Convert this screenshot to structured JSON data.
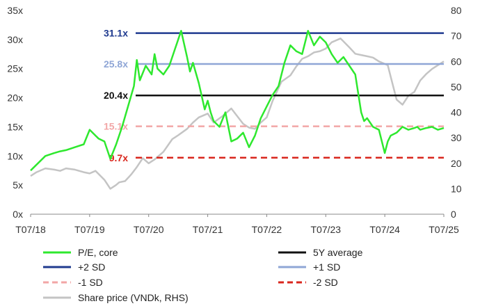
{
  "chart_data": {
    "type": "line",
    "title": "",
    "xlabel": "",
    "ylabel": "",
    "x_tick_labels": [
      "T07/18",
      "T07/19",
      "T07/20",
      "T07/21",
      "T07/22",
      "T07/23",
      "T07/24",
      "T07/25"
    ],
    "y_left": {
      "min": 0,
      "max": 35,
      "tick_labels": [
        "0x",
        "5x",
        "10x",
        "15x",
        "20x",
        "25x",
        "30x",
        "35x"
      ]
    },
    "y_right": {
      "min": 0,
      "max": 80,
      "tick_labels": [
        "0",
        "10",
        "20",
        "30",
        "40",
        "50",
        "60",
        "70",
        "80"
      ]
    },
    "grid": false,
    "legend_position": "bottom",
    "reference_lines": [
      {
        "name": "+2 SD",
        "value": 31.1,
        "label": "31.1x",
        "color": "#1f3a8f",
        "dashed": false,
        "label_color": "#1f3a8f"
      },
      {
        "name": "+1 SD",
        "value": 25.8,
        "label": "25.8x",
        "color": "#8fa6d6",
        "dashed": false,
        "label_color": "#8fa6d6"
      },
      {
        "name": "5Y average",
        "value": 20.4,
        "label": "20.4x",
        "color": "#111111",
        "dashed": false,
        "label_color": "#111111"
      },
      {
        "name": "-1 SD",
        "value": 15.1,
        "label": "15.1x",
        "color": "#f2a6a6",
        "dashed": true,
        "label_color": "#f2a6a6"
      },
      {
        "name": "-2 SD",
        "value": 9.7,
        "label": "9.7x",
        "color": "#d9261c",
        "dashed": true,
        "label_color": "#d9261c"
      }
    ],
    "series": [
      {
        "name": "P/E, core",
        "axis": "left",
        "color": "#2ee82e",
        "x": [
          2018.5,
          2018.6,
          2018.75,
          2018.9,
          2019.0,
          2019.1,
          2019.25,
          2019.4,
          2019.5,
          2019.6,
          2019.65,
          2019.75,
          2019.85,
          2019.95,
          2020.05,
          2020.15,
          2020.25,
          2020.3,
          2020.35,
          2020.45,
          2020.55,
          2020.6,
          2020.65,
          2020.75,
          2020.85,
          2020.95,
          2021.05,
          2021.15,
          2021.2,
          2021.25,
          2021.35,
          2021.45,
          2021.5,
          2021.55,
          2021.6,
          2021.7,
          2021.8,
          2021.9,
          2022.0,
          2022.1,
          2022.2,
          2022.3,
          2022.4,
          2022.5,
          2022.6,
          2022.7,
          2022.8,
          2022.9,
          2023.0,
          2023.1,
          2023.2,
          2023.3,
          2023.4,
          2023.5,
          2023.6,
          2023.7,
          2023.8,
          2023.9,
          2024.0,
          2024.1,
          2024.15,
          2024.2,
          2024.3,
          2024.4,
          2024.5,
          2024.55,
          2024.6,
          2024.7,
          2024.8,
          2024.9,
          2025.0,
          2025.05,
          2025.1,
          2025.2,
          2025.3,
          2025.4,
          2025.5
        ],
        "values": [
          7.5,
          8.5,
          10.0,
          10.5,
          10.8,
          11.0,
          11.5,
          12.0,
          14.5,
          13.5,
          13.0,
          12.5,
          9.5,
          12.0,
          15.0,
          18.5,
          22.0,
          26.5,
          23.0,
          25.5,
          24.0,
          27.5,
          25.0,
          24.0,
          25.5,
          28.5,
          31.5,
          27.0,
          24.5,
          26.0,
          22.5,
          18.0,
          19.5,
          17.5,
          16.0,
          15.0,
          17.5,
          12.5,
          13.0,
          14.0,
          11.5,
          13.5,
          16.5,
          18.5,
          20.5,
          22.0,
          26.0,
          29.0,
          28.0,
          27.5,
          31.5,
          29.0,
          30.5,
          29.5,
          27.5,
          26.0,
          27.0,
          25.5,
          24.0,
          17.5,
          16.0,
          16.5,
          15.0,
          14.5,
          10.5,
          12.5,
          13.5,
          14.0,
          15.0,
          14.5,
          14.8,
          15.0,
          14.5,
          14.8,
          15.0,
          14.5,
          14.8
        ]
      },
      {
        "name": "Share price (VNDk, RHS)",
        "axis": "right",
        "color": "#c4c4c4",
        "x": [
          2018.5,
          2018.6,
          2018.75,
          2018.9,
          2019.0,
          2019.1,
          2019.25,
          2019.4,
          2019.5,
          2019.6,
          2019.75,
          2019.85,
          2019.95,
          2020.0,
          2020.1,
          2020.2,
          2020.3,
          2020.4,
          2020.5,
          2020.6,
          2020.75,
          2020.9,
          2021.0,
          2021.15,
          2021.25,
          2021.35,
          2021.5,
          2021.6,
          2021.75,
          2021.9,
          2022.0,
          2022.1,
          2022.2,
          2022.3,
          2022.4,
          2022.5,
          2022.6,
          2022.75,
          2022.9,
          2023.0,
          2023.1,
          2023.2,
          2023.3,
          2023.4,
          2023.5,
          2023.6,
          2023.75,
          2023.9,
          2024.0,
          2024.1,
          2024.2,
          2024.3,
          2024.4,
          2024.5,
          2024.55,
          2024.6,
          2024.7,
          2024.8,
          2024.9,
          2025.0,
          2025.1,
          2025.2,
          2025.3,
          2025.4,
          2025.5
        ],
        "values": [
          15.0,
          16.5,
          18.0,
          17.5,
          17.0,
          18.0,
          17.5,
          16.5,
          16.0,
          17.0,
          13.5,
          10.0,
          11.5,
          12.5,
          13.0,
          15.5,
          18.5,
          22.0,
          20.0,
          21.5,
          24.5,
          29.5,
          31.0,
          33.5,
          36.0,
          38.0,
          39.5,
          36.0,
          38.5,
          41.5,
          38.5,
          35.5,
          34.0,
          33.5,
          36.0,
          38.0,
          44.5,
          52.0,
          54.5,
          58.0,
          61.0,
          62.0,
          63.5,
          64.0,
          65.0,
          67.5,
          69.0,
          65.5,
          63.0,
          62.5,
          62.0,
          61.5,
          60.0,
          59.0,
          58.5,
          54.0,
          45.0,
          43.0,
          46.5,
          48.0,
          52.5,
          55.0,
          57.0,
          58.5,
          60.0
        ]
      }
    ],
    "legend": [
      {
        "name": "P/E, core",
        "color": "#2ee82e",
        "dashed": false
      },
      {
        "name": "5Y average",
        "color": "#111111",
        "dashed": false
      },
      {
        "name": "+2 SD",
        "color": "#1f3a8f",
        "dashed": false
      },
      {
        "name": "+1 SD",
        "color": "#8fa6d6",
        "dashed": false
      },
      {
        "name": "-1 SD",
        "color": "#f2a6a6",
        "dashed": true
      },
      {
        "name": "-2 SD",
        "color": "#d9261c",
        "dashed": true
      },
      {
        "name": "Share price (VNDk, RHS)",
        "color": "#c4c4c4",
        "dashed": false
      }
    ]
  }
}
